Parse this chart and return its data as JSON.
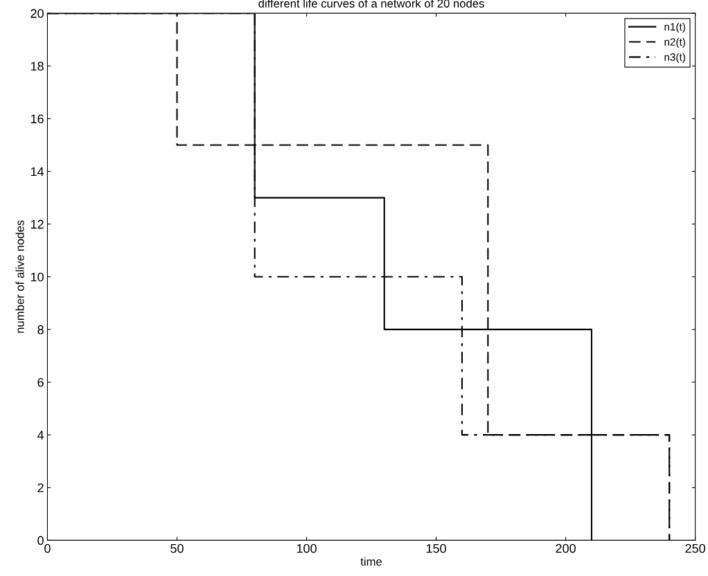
{
  "chart_data": {
    "type": "step",
    "title": "different life curves of a network of 20 nodes",
    "xlabel": "time",
    "ylabel": "number of alive nodes",
    "series": [
      {
        "name": "n1(t)",
        "color": "#000000",
        "line_style": "solid",
        "x": [
          0,
          80,
          130,
          210
        ],
        "values": [
          20,
          13,
          8,
          0
        ]
      },
      {
        "name": "n2(t)",
        "color": "#000000",
        "line_style": "dashed",
        "x": [
          0,
          50,
          170,
          240
        ],
        "values": [
          20,
          15,
          4,
          0
        ]
      },
      {
        "name": "n3(t)",
        "color": "#000000",
        "line_style": "dashdot",
        "x": [
          0,
          80,
          160,
          240
        ],
        "values": [
          20,
          10,
          4,
          0
        ]
      }
    ],
    "xlim": [
      0,
      250
    ],
    "xticks": [
      0,
      50,
      100,
      150,
      200,
      250
    ],
    "ylim": [
      0,
      20
    ],
    "yticks": [
      0,
      2,
      4,
      6,
      8,
      10,
      12,
      14,
      16,
      18,
      20
    ],
    "grid": false,
    "legend": "top right"
  }
}
